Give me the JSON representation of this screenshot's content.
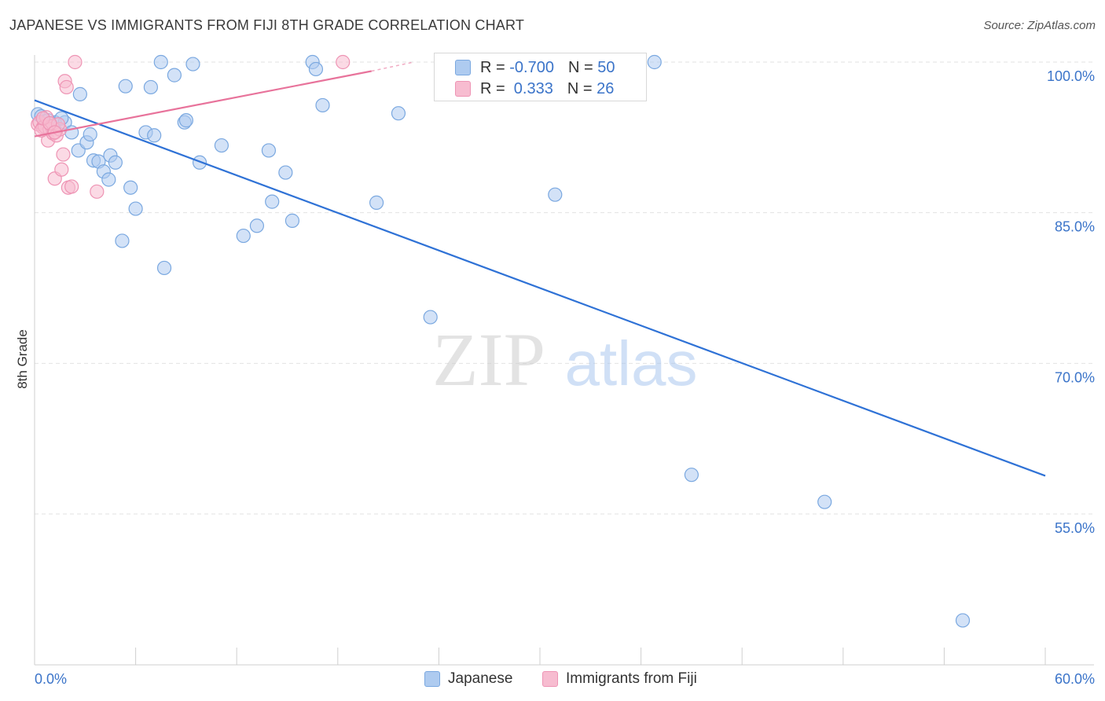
{
  "title": "JAPANESE VS IMMIGRANTS FROM FIJI 8TH GRADE CORRELATION CHART",
  "source": "Source: ZipAtlas.com",
  "watermark": {
    "zip": "ZIP",
    "atlas": "atlas"
  },
  "stats": [
    {
      "r_label": "R = ",
      "r_value": "-0.700",
      "n_label": "N = ",
      "n_value": "50"
    },
    {
      "r_label": "R = ",
      "r_value": " 0.333",
      "n_label": "N = ",
      "n_value": "26"
    }
  ],
  "colors": {
    "blue_fill": "#aecbf0",
    "blue_stroke": "#7aa8e0",
    "blue_line": "#2f72d6",
    "pink_fill": "#f7bcd0",
    "pink_stroke": "#ee94b4",
    "pink_line": "#e8739b",
    "axis_text": "#3b74c9",
    "grid": "#e2e2e2"
  },
  "chart_data": {
    "type": "scatter",
    "title": "JAPANESE VS IMMIGRANTS FROM FIJI 8TH GRADE CORRELATION CHART",
    "xlabel": "",
    "ylabel": "8th Grade",
    "xlim": [
      0,
      60
    ],
    "ylim": [
      40,
      101.5
    ],
    "x_tick_labels": [
      "0.0%",
      "60.0%"
    ],
    "y_ticks": [
      55,
      70,
      85,
      100
    ],
    "y_tick_labels": [
      "55.0%",
      "70.0%",
      "85.0%",
      "100.0%"
    ],
    "legend": [
      "Japanese",
      "Immigrants from Fiji"
    ],
    "series": [
      {
        "name": "Japanese",
        "points": [
          [
            0.2,
            94.8
          ],
          [
            0.6,
            94.1
          ],
          [
            1.2,
            94.0
          ],
          [
            1.8,
            94.0
          ],
          [
            2.2,
            93.0
          ],
          [
            2.6,
            91.2
          ],
          [
            2.7,
            96.8
          ],
          [
            3.1,
            92.0
          ],
          [
            3.3,
            92.8
          ],
          [
            3.5,
            90.2
          ],
          [
            3.8,
            90.1
          ],
          [
            4.1,
            89.1
          ],
          [
            4.4,
            88.3
          ],
          [
            4.5,
            90.7
          ],
          [
            4.8,
            90.0
          ],
          [
            5.2,
            82.2
          ],
          [
            5.4,
            97.6
          ],
          [
            5.7,
            87.5
          ],
          [
            6.0,
            85.4
          ],
          [
            6.6,
            93.0
          ],
          [
            6.9,
            97.5
          ],
          [
            7.1,
            92.7
          ],
          [
            7.5,
            100.0
          ],
          [
            7.7,
            79.5
          ],
          [
            8.3,
            98.7
          ],
          [
            8.9,
            94.0
          ],
          [
            9.0,
            94.2
          ],
          [
            9.4,
            99.8
          ],
          [
            9.8,
            90.0
          ],
          [
            11.1,
            91.7
          ],
          [
            12.4,
            82.7
          ],
          [
            13.2,
            83.7
          ],
          [
            13.9,
            91.2
          ],
          [
            14.1,
            86.1
          ],
          [
            14.9,
            89.0
          ],
          [
            15.3,
            84.2
          ],
          [
            16.5,
            100.0
          ],
          [
            16.7,
            99.3
          ],
          [
            17.1,
            95.7
          ],
          [
            20.3,
            86.0
          ],
          [
            21.6,
            94.9
          ],
          [
            23.5,
            74.6
          ],
          [
            30.9,
            86.8
          ],
          [
            36.8,
            100.0
          ],
          [
            39.0,
            58.9
          ],
          [
            46.9,
            56.2
          ],
          [
            55.1,
            44.4
          ],
          [
            0.4,
            94.6
          ],
          [
            1.6,
            94.4
          ],
          [
            0.8,
            94.2
          ]
        ]
      },
      {
        "name": "Immigrants from Fiji",
        "points": [
          [
            0.2,
            93.8
          ],
          [
            0.3,
            94.0
          ],
          [
            0.5,
            93.5
          ],
          [
            0.6,
            93.6
          ],
          [
            0.7,
            94.5
          ],
          [
            0.8,
            92.2
          ],
          [
            0.9,
            93.3
          ],
          [
            1.0,
            93.6
          ],
          [
            1.1,
            92.9
          ],
          [
            1.2,
            88.4
          ],
          [
            1.3,
            92.7
          ],
          [
            1.5,
            93.3
          ],
          [
            1.6,
            89.3
          ],
          [
            1.7,
            90.8
          ],
          [
            1.8,
            98.1
          ],
          [
            1.9,
            97.5
          ],
          [
            2.0,
            87.5
          ],
          [
            2.2,
            87.6
          ],
          [
            2.4,
            100.0
          ],
          [
            3.7,
            87.1
          ],
          [
            18.3,
            100.0
          ],
          [
            0.4,
            93.2
          ],
          [
            0.5,
            94.4
          ],
          [
            1.4,
            93.8
          ],
          [
            0.9,
            93.9
          ],
          [
            1.2,
            93.0
          ]
        ]
      }
    ],
    "trendlines": [
      {
        "series": "Japanese",
        "x": [
          0,
          60
        ],
        "y": [
          96.2,
          58.8
        ]
      },
      {
        "series": "Immigrants from Fiji",
        "x": [
          0,
          20.0
        ],
        "y": [
          92.6,
          99.1
        ],
        "dashed_to": [
          22.5,
          100.0
        ]
      }
    ]
  }
}
